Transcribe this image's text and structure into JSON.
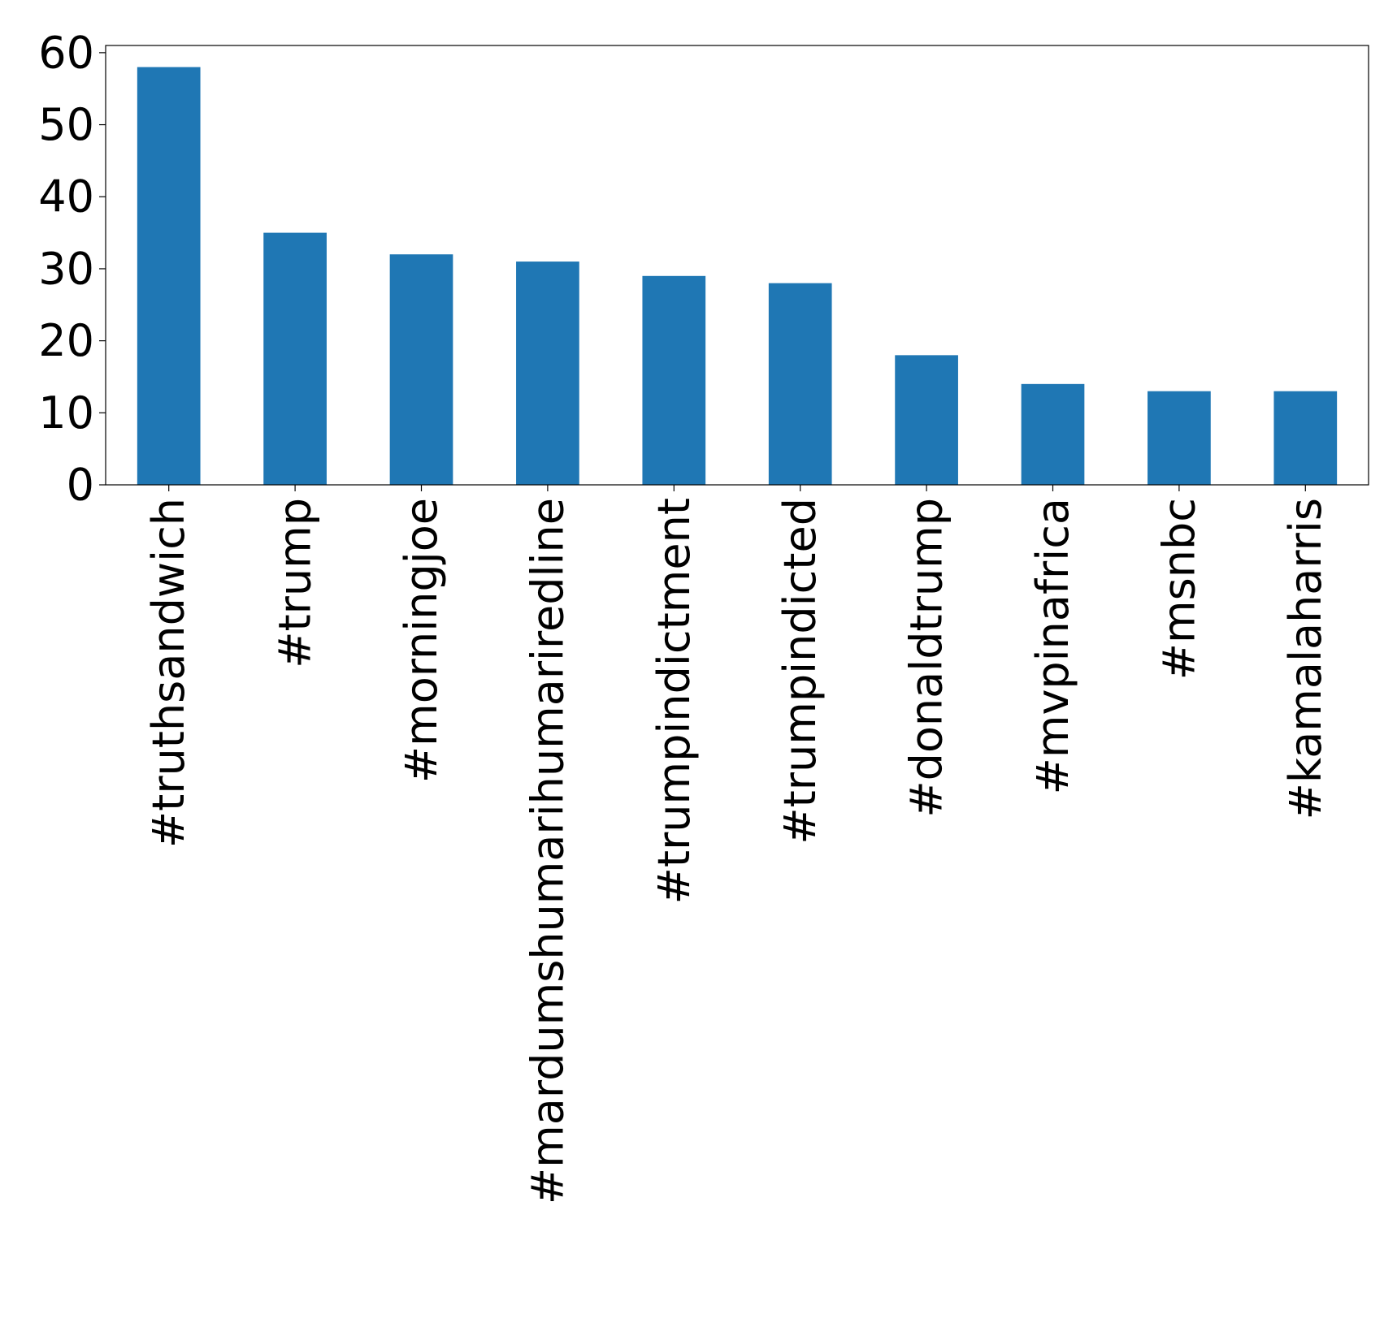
{
  "chart_data": {
    "type": "bar",
    "title": "",
    "xlabel": "",
    "ylabel": "",
    "categories": [
      "#truthsandwich",
      "#trump",
      "#morningjoe",
      "#mardumshumarihumariredline",
      "#trumpindictment",
      "#trumpindicted",
      "#donaldtrump",
      "#mvpinafrica",
      "#msnbc",
      "#kamalaharris"
    ],
    "values": [
      58,
      35,
      32,
      31,
      29,
      28,
      18,
      14,
      13,
      13
    ],
    "ylim": [
      0,
      61
    ],
    "yticks": [
      0,
      10,
      20,
      30,
      40,
      50,
      60
    ],
    "bar_color": "#1f77b4",
    "grid": false,
    "legend": "none"
  }
}
